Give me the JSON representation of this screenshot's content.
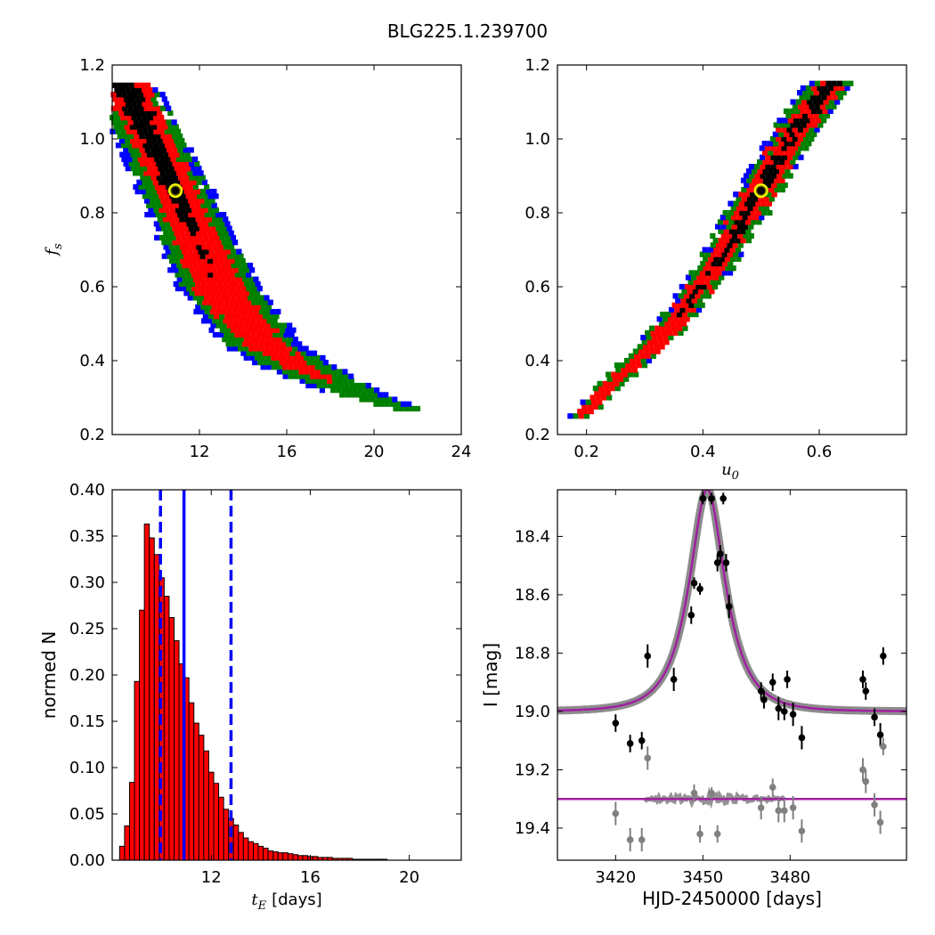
{
  "figure": {
    "title": "BLG225.1.239700"
  },
  "chart_data": [
    {
      "id": "fs_vs_tE",
      "type": "heatmap",
      "xlabel": "",
      "ylabel": "f_s",
      "xlim": [
        8,
        24
      ],
      "ylim": [
        0.2,
        1.2
      ],
      "xticks": [
        "12",
        "16",
        "20",
        "24"
      ],
      "yticks": [
        "0.2",
        "0.4",
        "0.6",
        "0.8",
        "1.0",
        "1.2"
      ],
      "levels": [
        "black",
        "red",
        "green",
        "blue"
      ],
      "colors": {
        "black": "#000000",
        "red": "#ff0000",
        "green": "#008000",
        "blue": "#0000ff"
      },
      "best_fit": {
        "x": 10.9,
        "y": 0.86
      },
      "ridge": {
        "x": [
          8.6,
          10.9,
          13.0,
          15.0,
          16.7,
          18.5,
          20.0,
          21.5
        ],
        "y": [
          1.15,
          0.86,
          0.59,
          0.44,
          0.38,
          0.33,
          0.295,
          0.27
        ],
        "width_black": [
          0.55,
          0.35,
          0.0,
          0.0,
          0.0,
          0.0,
          0.0,
          0.0
        ],
        "width_red": [
          1.0,
          0.95,
          1.15,
          0.9,
          0.7,
          0.0,
          0.0,
          0.0
        ],
        "width_green": [
          1.3,
          1.45,
          1.6,
          1.5,
          1.4,
          1.1,
          0.8,
          0.5
        ],
        "width_blue": [
          1.5,
          1.75,
          1.95,
          1.85,
          1.7,
          1.4,
          1.05,
          0.75
        ]
      }
    },
    {
      "id": "fs_vs_u0",
      "type": "heatmap",
      "xlabel": "u_0",
      "ylabel": "",
      "xlim": [
        0.15,
        0.75
      ],
      "ylim": [
        0.2,
        1.2
      ],
      "xticks": [
        "0.2",
        "0.4",
        "0.6"
      ],
      "yticks": [
        "0.2",
        "0.4",
        "0.6",
        "0.8",
        "1.0",
        "1.2"
      ],
      "levels": [
        "black",
        "red",
        "green",
        "blue"
      ],
      "best_fit": {
        "x": 0.5,
        "y": 0.86
      },
      "ridge": {
        "x": [
          0.19,
          0.26,
          0.35,
          0.42,
          0.5,
          0.56,
          0.62
        ],
        "y": [
          0.25,
          0.36,
          0.5,
          0.65,
          0.86,
          1.02,
          1.15
        ],
        "width_black": [
          0.0,
          0.0,
          0.0,
          0.006,
          0.009,
          0.01,
          0.01
        ],
        "width_red": [
          0.01,
          0.014,
          0.018,
          0.02,
          0.024,
          0.025,
          0.025
        ],
        "width_green": [
          0.016,
          0.022,
          0.026,
          0.03,
          0.034,
          0.036,
          0.036
        ],
        "width_blue": [
          0.018,
          0.024,
          0.03,
          0.034,
          0.04,
          0.042,
          0.042
        ]
      }
    },
    {
      "id": "tE_histogram",
      "type": "bar",
      "xlabel": "t_E",
      "xlabel_suffix": "[days]",
      "ylabel": "normed N",
      "xlim": [
        8,
        22.1
      ],
      "ylim": [
        0,
        0.4
      ],
      "xticks": [
        "12",
        "16",
        "20"
      ],
      "yticks": [
        "0.00",
        "0.05",
        "0.10",
        "0.15",
        "0.20",
        "0.25",
        "0.30",
        "0.35",
        "0.40"
      ],
      "bin_width": 0.2,
      "bin_start": 8.1,
      "values": [
        0.0,
        0.015,
        0.037,
        0.084,
        0.193,
        0.27,
        0.363,
        0.348,
        0.33,
        0.305,
        0.285,
        0.262,
        0.237,
        0.212,
        0.197,
        0.17,
        0.148,
        0.135,
        0.118,
        0.095,
        0.083,
        0.068,
        0.055,
        0.045,
        0.038,
        0.03,
        0.024,
        0.02,
        0.018,
        0.015,
        0.013,
        0.01,
        0.009,
        0.008,
        0.008,
        0.007,
        0.006,
        0.005,
        0.005,
        0.004,
        0.004,
        0.003,
        0.003,
        0.003,
        0.002,
        0.002,
        0.002,
        0.002,
        0.001,
        0.001,
        0.001,
        0.001,
        0.001,
        0.001,
        0.001,
        0.0,
        0.0,
        0.0,
        0.0,
        0.0,
        0.0,
        0.0,
        0.0,
        0.0,
        0.0,
        0.0,
        0.0,
        0.0,
        0.0,
        0.0
      ],
      "bar_color": "#ff0000",
      "median": 10.9,
      "interval": [
        9.95,
        12.8
      ],
      "line_color": "#0000ff"
    },
    {
      "id": "lightcurve",
      "type": "scatter",
      "xlabel": "HJD-2450000 [days]",
      "ylabel": "I [mag]",
      "xlim": [
        3400,
        3520
      ],
      "ylim": [
        19.51,
        18.24
      ],
      "xticks": [
        "3420",
        "3450",
        "3480"
      ],
      "yticks": [
        "18.4",
        "18.6",
        "18.8",
        "19.0",
        "19.2",
        "19.4"
      ],
      "model": {
        "t0": 3451.5,
        "u0": 0.5,
        "tE": 10.9,
        "baseline": 19.0,
        "blend_fs": 0.86
      },
      "model_color": "#a020a0",
      "band_color": "#808080",
      "series": [
        {
          "name": "",
          "x": [
            3420,
            3425,
            3429,
            3431,
            3440,
            3446,
            3447,
            3449,
            3450,
            3453,
            3455,
            3456,
            3457,
            3458,
            3459,
            3470,
            3471,
            3474,
            3476,
            3478,
            3479,
            3481,
            3484,
            3505,
            3506,
            3509,
            3511,
            3512
          ],
          "y": [
            19.04,
            19.11,
            19.1,
            18.81,
            18.89,
            18.67,
            18.56,
            18.58,
            18.27,
            18.27,
            18.49,
            18.46,
            18.27,
            18.49,
            18.64,
            18.93,
            18.96,
            18.9,
            18.99,
            19.0,
            18.89,
            19.01,
            19.09,
            18.89,
            18.93,
            19.02,
            19.08,
            18.81
          ],
          "yerr": [
            0.03,
            0.03,
            0.03,
            0.04,
            0.04,
            0.03,
            0.02,
            0.02,
            0.02,
            0.02,
            0.03,
            0.03,
            0.02,
            0.03,
            0.04,
            0.03,
            0.03,
            0.03,
            0.04,
            0.03,
            0.03,
            0.04,
            0.04,
            0.03,
            0.03,
            0.03,
            0.04,
            0.03
          ],
          "color": "#000000"
        },
        {
          "name": "",
          "x": [
            3420,
            3425,
            3429,
            3431,
            3447,
            3449,
            3453,
            3455,
            3470,
            3474,
            3476,
            3478,
            3481,
            3484,
            3505,
            3506,
            3509,
            3511,
            3512
          ],
          "y": [
            19.35,
            19.44,
            19.44,
            19.16,
            19.28,
            19.42,
            19.28,
            19.42,
            19.33,
            19.26,
            19.34,
            19.34,
            19.33,
            19.41,
            19.2,
            19.24,
            19.32,
            19.38,
            19.12
          ],
          "yerr": [
            0.04,
            0.04,
            0.04,
            0.04,
            0.03,
            0.03,
            0.02,
            0.03,
            0.04,
            0.03,
            0.04,
            0.04,
            0.04,
            0.04,
            0.04,
            0.04,
            0.04,
            0.04,
            0.03
          ],
          "color": "#808080"
        }
      ],
      "lower_model_level": 19.3
    }
  ]
}
